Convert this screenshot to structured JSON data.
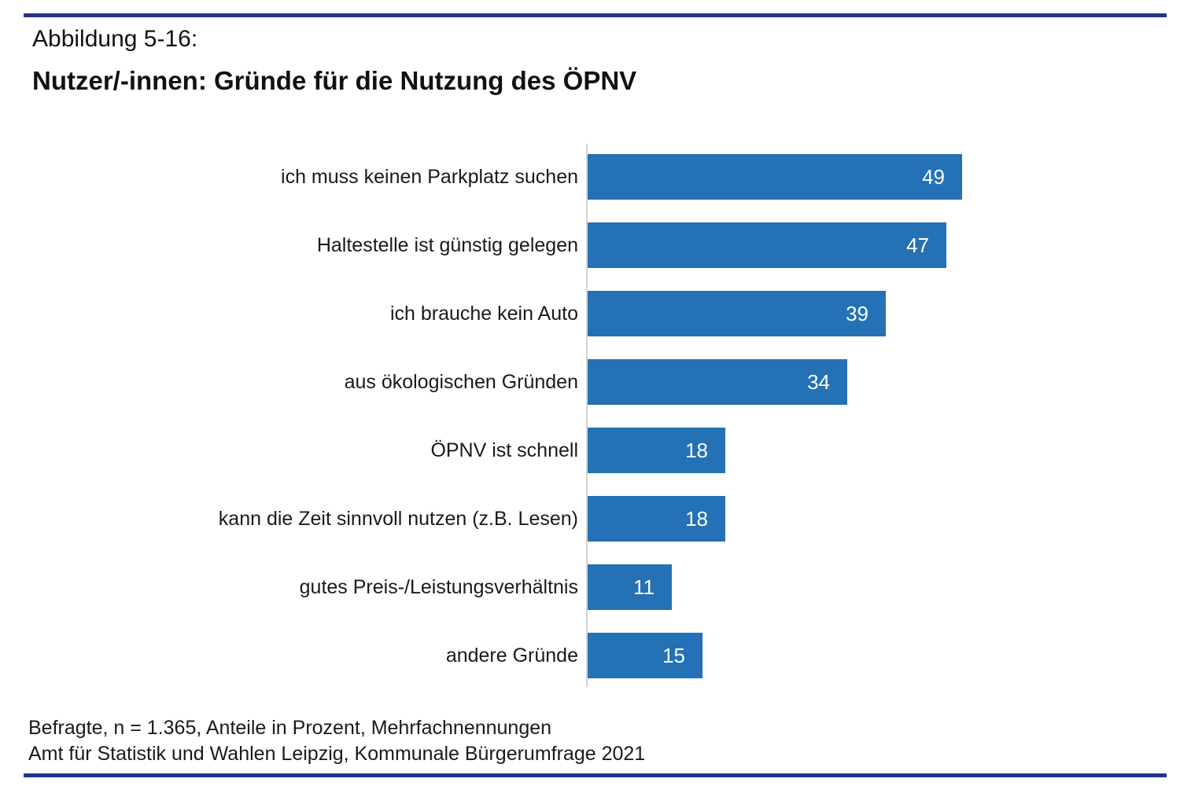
{
  "header": {
    "figure_label": "Abbildung 5-16:",
    "title": "Nutzer/-innen: Gründe für die Nutzung des ÖPNV"
  },
  "chart_data": {
    "type": "bar",
    "orientation": "horizontal",
    "title": "Nutzer/-innen: Gründe für die Nutzung des ÖPNV",
    "categories": [
      "ich muss keinen Parkplatz suchen",
      "Haltestelle ist günstig gelegen",
      "ich brauche kein Auto",
      "aus ökologischen Gründen",
      "ÖPNV ist schnell",
      "kann die Zeit sinnvoll nutzen (z.B. Lesen)",
      "gutes Preis-/Leistungsverhältnis",
      "andere Gründe"
    ],
    "values": [
      49,
      47,
      39,
      34,
      18,
      18,
      11,
      15
    ],
    "value_unit": "Prozent",
    "xlim": [
      0,
      51
    ],
    "grid": false,
    "legend": false,
    "bar_color": "#2471B5",
    "value_label_color": "#ffffff",
    "axis_line_color": "#d4d4d4"
  },
  "footer": {
    "line1": "Befragte, n = 1.365, Anteile in Prozent, Mehrfachnennungen",
    "line2": "Amt für Statistik und Wahlen Leipzig, Kommunale Bürgerumfrage 2021"
  },
  "style": {
    "rule_color": "#23338F"
  }
}
